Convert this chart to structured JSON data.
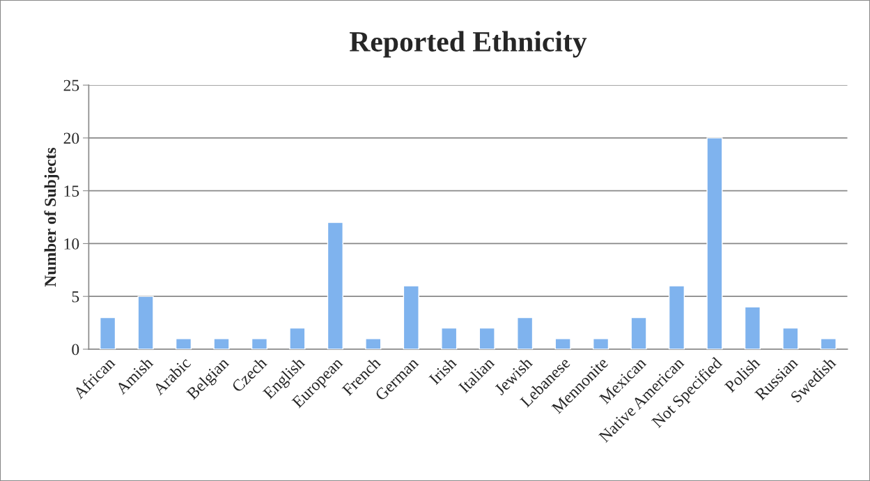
{
  "chart_data": {
    "type": "bar",
    "title": "Reported Ethnicity",
    "ylabel": "Number of Subjects",
    "categories": [
      "African",
      "Amish",
      "Arabic",
      "Belgian",
      "Czech",
      "English",
      "European",
      "French",
      "German",
      "Irish",
      "Italian",
      "Jewish",
      "Lebanese",
      "Mennonite",
      "Mexican",
      "Native American",
      "Not Specified",
      "Polish",
      "Russian",
      "Swedish"
    ],
    "values": [
      3,
      5,
      1,
      1,
      1,
      2,
      12,
      1,
      6,
      2,
      2,
      3,
      1,
      1,
      3,
      6,
      20,
      4,
      2,
      1
    ],
    "color": "#7fb3ee",
    "ylim": [
      0,
      25
    ],
    "yticks": [
      0,
      5,
      10,
      15,
      20,
      25
    ],
    "grid": "y",
    "legend": false
  }
}
